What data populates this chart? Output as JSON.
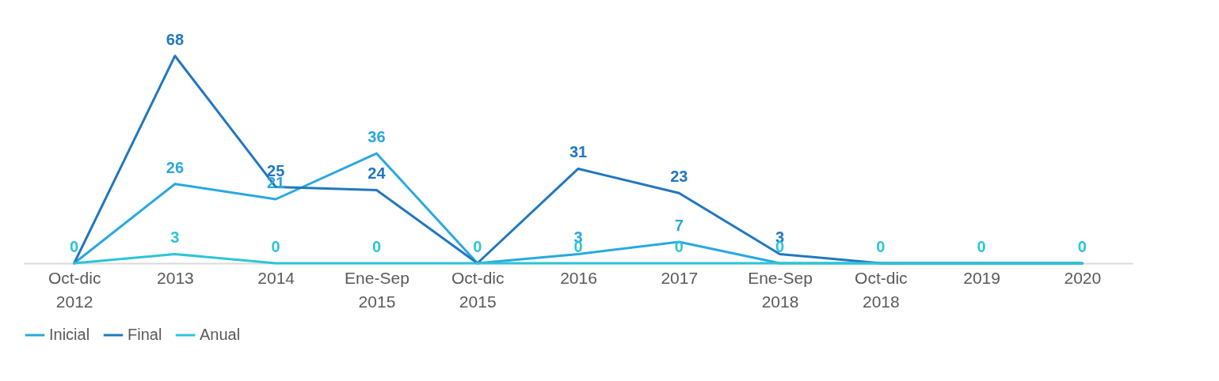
{
  "chart_data": {
    "type": "line",
    "categories": [
      "Oct-dic 2012",
      "2013",
      "2014",
      "Ene-Sep 2015",
      "Oct-dic 2015",
      "2016",
      "2017",
      "Ene-Sep 2018",
      "Oct-dic 2018",
      "2019",
      "2020"
    ],
    "series": [
      {
        "name": "Inicial",
        "color": "#29a8e0",
        "values": [
          0,
          26,
          21,
          36,
          0,
          3,
          7,
          0,
          0,
          0,
          0
        ],
        "value_labels": [
          null,
          "26",
          "21",
          "36",
          null,
          "3",
          "7",
          null,
          null,
          null,
          null
        ]
      },
      {
        "name": "Final",
        "color": "#2277bf",
        "values": [
          0,
          68,
          25,
          24,
          0,
          31,
          23,
          3,
          0,
          0,
          0
        ],
        "value_labels": [
          null,
          "68",
          "25",
          "24",
          null,
          "31",
          "23",
          "3",
          null,
          null,
          null
        ]
      },
      {
        "name": "Anual",
        "color": "#2cc5d6",
        "values": [
          0,
          3,
          0,
          0,
          0,
          0,
          0,
          0,
          0,
          0,
          0
        ],
        "value_labels": [
          "0",
          "3",
          "0",
          "0",
          "0",
          "0",
          "0",
          "0",
          "0",
          "0",
          "0"
        ]
      }
    ],
    "legend": "bottom",
    "grid": false,
    "marker": "none",
    "line_style": "solid"
  }
}
